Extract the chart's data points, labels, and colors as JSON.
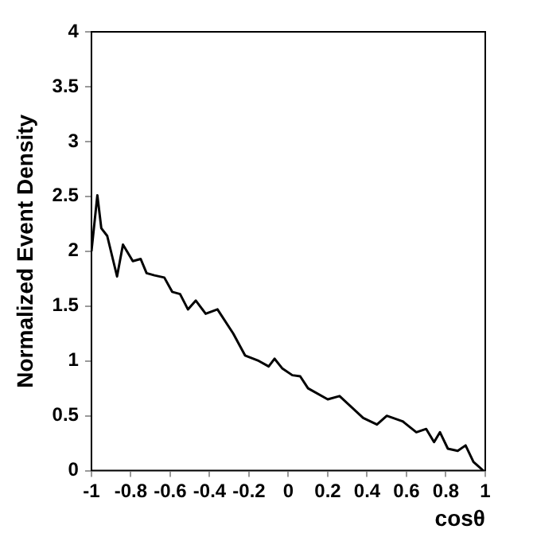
{
  "chart_data": {
    "type": "line",
    "xlabel": "cosθ",
    "ylabel": "Normalized Event Density",
    "xlim": [
      -1,
      1
    ],
    "ylim": [
      0,
      4
    ],
    "xticks": [
      -1,
      -0.8,
      -0.6,
      -0.4,
      -0.2,
      0,
      0.2,
      0.4,
      0.6,
      0.8,
      1
    ],
    "yticks": [
      0,
      0.5,
      1,
      1.5,
      2,
      2.5,
      3,
      3.5,
      4
    ],
    "grid": false,
    "legend": false,
    "marker": "none",
    "line_style": "solid",
    "series": [
      {
        "color": "#000000",
        "x": [
          -1,
          -0.97,
          -0.95,
          -0.92,
          -0.87,
          -0.84,
          -0.82,
          -0.79,
          -0.75,
          -0.72,
          -0.68,
          -0.63,
          -0.59,
          -0.55,
          -0.51,
          -0.47,
          -0.42,
          -0.36,
          -0.28,
          -0.22,
          -0.15,
          -0.1,
          -0.07,
          -0.03,
          0.02,
          0.06,
          0.1,
          0.2,
          0.26,
          0.38,
          0.45,
          0.5,
          0.58,
          0.65,
          0.7,
          0.74,
          0.77,
          0.81,
          0.86,
          0.9,
          0.94,
          0.99
        ],
        "values": [
          2.0,
          2.51,
          2.21,
          2.14,
          1.77,
          2.06,
          2.0,
          1.91,
          1.93,
          1.8,
          1.78,
          1.76,
          1.63,
          1.61,
          1.47,
          1.55,
          1.43,
          1.47,
          1.25,
          1.05,
          1.0,
          0.95,
          1.02,
          0.93,
          0.87,
          0.86,
          0.75,
          0.65,
          0.68,
          0.48,
          0.42,
          0.5,
          0.45,
          0.35,
          0.38,
          0.26,
          0.35,
          0.2,
          0.18,
          0.23,
          0.08,
          0.0
        ]
      }
    ]
  }
}
